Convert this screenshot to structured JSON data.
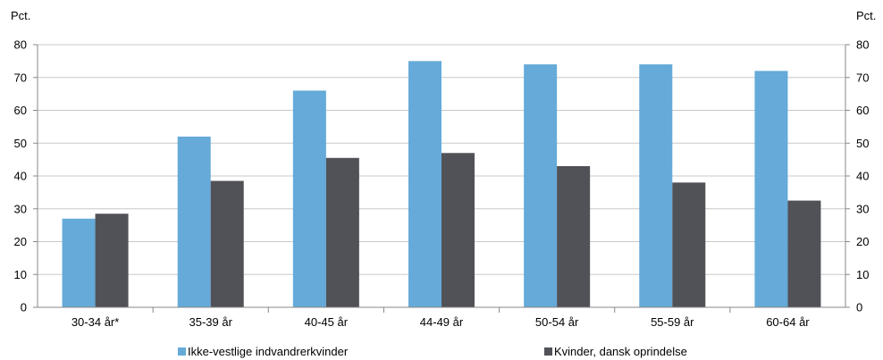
{
  "chart_data": {
    "type": "bar",
    "categories": [
      "30-34 år*",
      "35-39 år",
      "40-45 år",
      "44-49 år",
      "50-54 år",
      "55-59 år",
      "60-64 år"
    ],
    "series": [
      {
        "name": "Ikke-vestlige indvandrerkvinder",
        "color": "#65aad8",
        "values": [
          27,
          52,
          66,
          75,
          74,
          74,
          72
        ]
      },
      {
        "name": "Kvinder, dansk oprindelse",
        "color": "#505257",
        "values": [
          28.5,
          38.5,
          45.5,
          47,
          43,
          38,
          32.5
        ]
      }
    ],
    "y_unit_left": "Pct.",
    "y_unit_right": "Pct.",
    "ylim": [
      0,
      80
    ],
    "yticks": [
      "0",
      "10",
      "20",
      "30",
      "40",
      "50",
      "60",
      "70",
      "80"
    ],
    "grid": true,
    "legend_position": "bottom"
  }
}
